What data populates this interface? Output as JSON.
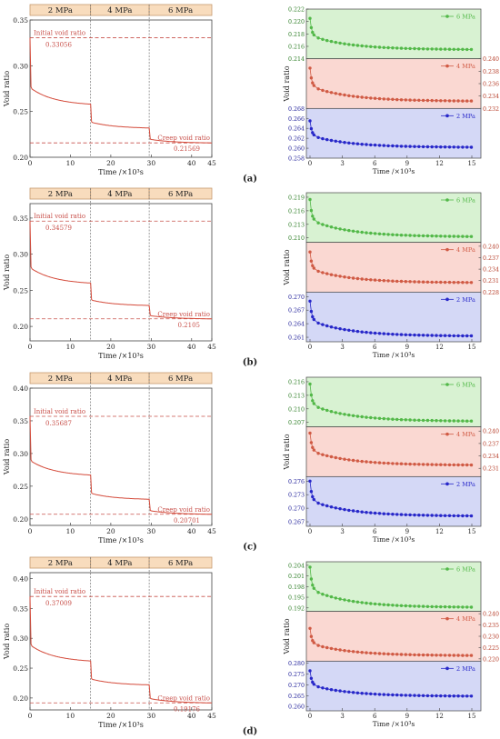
{
  "figure": {
    "panels": [
      {
        "panel_label": "(a)",
        "left": {
          "type": "line",
          "ylabel": "Void ratio",
          "xlabel": "Time /×10³s",
          "xlim": [
            0,
            45
          ],
          "ylim": [
            0.2,
            0.35
          ],
          "x_ticks": [
            0,
            10,
            20,
            30,
            40,
            45
          ],
          "y_ticks": [
            0.2,
            0.25,
            0.3,
            0.35
          ],
          "stages": [
            "2 MPa",
            "4 MPa",
            "6 MPa"
          ],
          "stage_boundaries": [
            0,
            15,
            29.5,
            45
          ],
          "initial": {
            "label": "Initial void ratio",
            "value_text": "0.33056",
            "value": 0.33056
          },
          "creep": {
            "label": "Creep void ratio",
            "value_text": "0.21569",
            "value": 0.21569
          },
          "curve": {
            "start": 0.33056,
            "stage_levels": [
              0.258,
              0.232,
              0.21569
            ]
          }
        },
        "right": {
          "type": "scatter",
          "ylabel": "Void ratio",
          "xlabel": "Time /×10³s",
          "x_ticks": [
            0,
            3,
            6,
            9,
            12,
            15
          ],
          "subplots": [
            {
              "name": "6 MPa",
              "color": "#52b848",
              "bg": "#d8f2d2",
              "ylim": [
                0.214,
                0.222
              ],
              "ticks": [
                0.214,
                0.216,
                0.218,
                0.22,
                0.222
              ],
              "axis": "left",
              "start": 0.2205,
              "end": 0.2155
            },
            {
              "name": "4 MPa",
              "color": "#d05a44",
              "bg": "#fad8d2",
              "ylim": [
                0.232,
                0.24
              ],
              "ticks": [
                0.232,
                0.234,
                0.236,
                0.238,
                0.24
              ],
              "axis": "right",
              "start": 0.2385,
              "end": 0.2332
            },
            {
              "name": "2 MPa",
              "color": "#2727c9",
              "bg": "#d4d8f6",
              "ylim": [
                0.258,
                0.268
              ],
              "ticks": [
                0.258,
                0.26,
                0.262,
                0.264,
                0.266,
                0.268
              ],
              "axis": "left",
              "start": 0.2655,
              "end": 0.2602
            }
          ]
        }
      },
      {
        "panel_label": "(b)",
        "left": {
          "type": "line",
          "ylabel": "Void ratio",
          "xlabel": "Time /×10³s",
          "xlim": [
            0,
            45
          ],
          "ylim": [
            0.18,
            0.37
          ],
          "x_ticks": [
            0,
            10,
            20,
            30,
            40,
            45
          ],
          "y_ticks": [
            0.2,
            0.25,
            0.3,
            0.35
          ],
          "stages": [
            "2 MPa",
            "4 MPa",
            "6 MPa"
          ],
          "stage_boundaries": [
            0,
            15,
            29.5,
            45
          ],
          "initial": {
            "label": "Initial void ratio",
            "value_text": "0.34579",
            "value": 0.34579
          },
          "creep": {
            "label": "Creep void ratio",
            "value_text": "0.2105",
            "value": 0.2105
          },
          "curve": {
            "start": 0.34579,
            "stage_levels": [
              0.26,
              0.229,
              0.2105
            ]
          }
        },
        "right": {
          "type": "scatter",
          "ylabel": "Void ratio",
          "xlabel": "Time /×10³s",
          "x_ticks": [
            0,
            3,
            6,
            9,
            12,
            15
          ],
          "subplots": [
            {
              "name": "6 MPa",
              "color": "#52b848",
              "bg": "#d8f2d2",
              "ylim": [
                0.209,
                0.22
              ],
              "ticks": [
                0.21,
                0.213,
                0.216,
                0.219
              ],
              "axis": "left",
              "start": 0.2185,
              "end": 0.2103
            },
            {
              "name": "4 MPa",
              "color": "#d05a44",
              "bg": "#fad8d2",
              "ylim": [
                0.228,
                0.241
              ],
              "ticks": [
                0.228,
                0.231,
                0.234,
                0.237,
                0.24
              ],
              "axis": "right",
              "start": 0.2385,
              "end": 0.2305
            },
            {
              "name": "2 MPa",
              "color": "#2727c9",
              "bg": "#d4d8f6",
              "ylim": [
                0.26,
                0.271
              ],
              "ticks": [
                0.261,
                0.264,
                0.267,
                0.27
              ],
              "axis": "left",
              "start": 0.269,
              "end": 0.2613
            }
          ]
        }
      },
      {
        "panel_label": "(c)",
        "left": {
          "type": "line",
          "ylabel": "Void ratio",
          "xlabel": "Time /×10³s",
          "xlim": [
            0,
            45
          ],
          "ylim": [
            0.19,
            0.4
          ],
          "x_ticks": [
            0,
            10,
            20,
            30,
            40,
            45
          ],
          "y_ticks": [
            0.2,
            0.25,
            0.3,
            0.35,
            0.4
          ],
          "stages": [
            "2 MPa",
            "4 MPa",
            "6 MPa"
          ],
          "stage_boundaries": [
            0,
            15,
            29.5,
            45
          ],
          "initial": {
            "label": "Initial void ratio",
            "value_text": "0.35687",
            "value": 0.35687
          },
          "creep": {
            "label": "Creep void ratio",
            "value_text": "0.20701",
            "value": 0.20701
          },
          "curve": {
            "start": 0.35687,
            "stage_levels": [
              0.267,
              0.23,
              0.20701
            ]
          }
        },
        "right": {
          "type": "scatter",
          "ylabel": "Void ratio",
          "xlabel": "Time /×10³s",
          "x_ticks": [
            0,
            3,
            6,
            9,
            12,
            15
          ],
          "subplots": [
            {
              "name": "6 MPa",
              "color": "#52b848",
              "bg": "#d8f2d2",
              "ylim": [
                0.206,
                0.217
              ],
              "ticks": [
                0.207,
                0.21,
                0.213,
                0.216
              ],
              "axis": "left",
              "start": 0.2155,
              "end": 0.2073
            },
            {
              "name": "4 MPa",
              "color": "#d05a44",
              "bg": "#fad8d2",
              "ylim": [
                0.229,
                0.241
              ],
              "ticks": [
                0.231,
                0.234,
                0.237,
                0.24
              ],
              "axis": "right",
              "start": 0.2395,
              "end": 0.2318
            },
            {
              "name": "2 MPa",
              "color": "#2727c9",
              "bg": "#d4d8f6",
              "ylim": [
                0.266,
                0.277
              ],
              "ticks": [
                0.267,
                0.27,
                0.273,
                0.276
              ],
              "axis": "left",
              "start": 0.276,
              "end": 0.2683
            }
          ]
        }
      },
      {
        "panel_label": "(d)",
        "left": {
          "type": "line",
          "ylabel": "Void ratio",
          "xlabel": "Time /×10³s",
          "xlim": [
            0,
            45
          ],
          "ylim": [
            0.18,
            0.41
          ],
          "x_ticks": [
            0,
            10,
            20,
            30,
            40,
            45
          ],
          "y_ticks": [
            0.2,
            0.25,
            0.3,
            0.35,
            0.4
          ],
          "stages": [
            "2 MPa",
            "4 MPa",
            "6 MPa"
          ],
          "stage_boundaries": [
            0,
            15,
            29.5,
            45
          ],
          "initial": {
            "label": "Initial void ratio",
            "value_text": "0.37009",
            "value": 0.37009
          },
          "creep": {
            "label": "Creep void ratio",
            "value_text": "0.19176",
            "value": 0.19176
          },
          "curve": {
            "start": 0.37009,
            "stage_levels": [
              0.262,
              0.222,
              0.19176
            ]
          }
        },
        "right": {
          "type": "scatter",
          "ylabel": "Void ratio",
          "xlabel": "Time /×10³s",
          "x_ticks": [
            0,
            3,
            6,
            9,
            12,
            15
          ],
          "subplots": [
            {
              "name": "6 MPa",
              "color": "#52b848",
              "bg": "#d8f2d2",
              "ylim": [
                0.191,
                0.205
              ],
              "ticks": [
                0.192,
                0.195,
                0.198,
                0.201,
                0.204
              ],
              "axis": "left",
              "start": 0.2035,
              "end": 0.1922
            },
            {
              "name": "4 MPa",
              "color": "#d05a44",
              "bg": "#fad8d2",
              "ylim": [
                0.219,
                0.241
              ],
              "ticks": [
                0.22,
                0.225,
                0.23,
                0.235,
                0.24
              ],
              "axis": "right",
              "start": 0.2335,
              "end": 0.2215
            },
            {
              "name": "2 MPa",
              "color": "#2727c9",
              "bg": "#d4d8f6",
              "ylim": [
                0.258,
                0.281
              ],
              "ticks": [
                0.26,
                0.265,
                0.27,
                0.275,
                0.28
              ],
              "axis": "left",
              "start": 0.2765,
              "end": 0.2648
            }
          ]
        }
      }
    ]
  },
  "style": {
    "stage_fill": "#f8dcbd",
    "stage_edge": "#c79a6e",
    "curve_color": "#d44a3a",
    "dashed_color": "#c8504a",
    "axis_color": "#444444",
    "text_color": "#222222"
  }
}
